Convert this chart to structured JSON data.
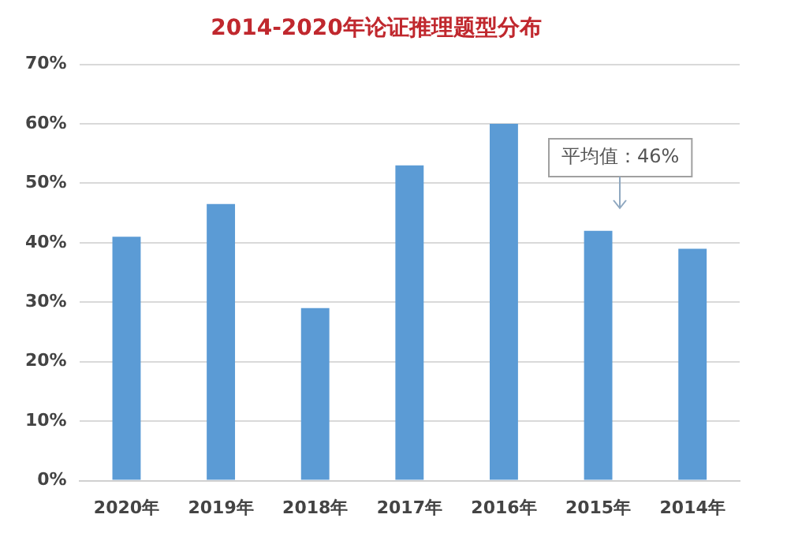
{
  "chart_data": {
    "type": "bar",
    "title": "2014-2020年论证推理题型分布",
    "categories": [
      "2020年",
      "2019年",
      "2018年",
      "2017年",
      "2016年",
      "2015年",
      "2014年"
    ],
    "values": [
      41,
      46.5,
      29,
      53,
      60,
      42,
      39
    ],
    "color": "#5b9bd5",
    "ylim": [
      0,
      70
    ],
    "yticks": [
      {
        "value": 0,
        "label": "0%"
      },
      {
        "value": 10,
        "label": "10%"
      },
      {
        "value": 20,
        "label": "20%"
      },
      {
        "value": 30,
        "label": "30%"
      },
      {
        "value": 40,
        "label": "40%"
      },
      {
        "value": 50,
        "label": "50%"
      },
      {
        "value": 60,
        "label": "60%"
      },
      {
        "value": 70,
        "label": "70%"
      }
    ],
    "grid": "y",
    "annotations": [
      "平均值：46%"
    ]
  }
}
